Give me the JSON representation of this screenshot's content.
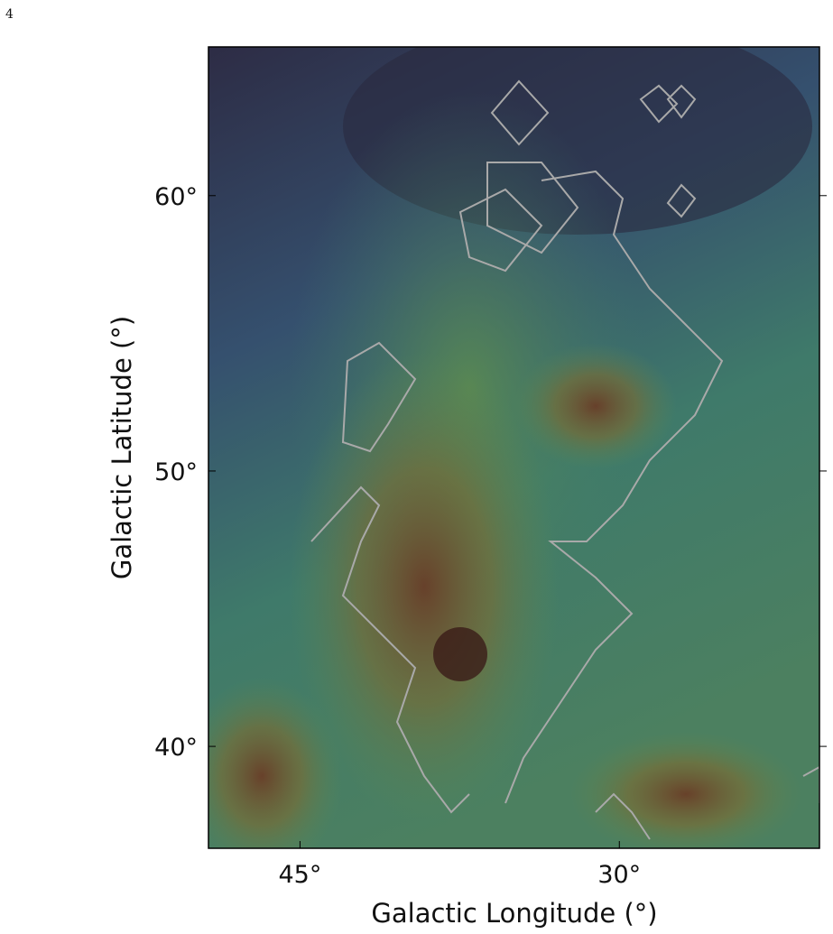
{
  "page_number": "4",
  "chart_data": {
    "type": "map",
    "x_label": "Galactic Longitude (°)",
    "y_label": "Galactic Latitude (°)",
    "xlim": [
      49.3,
      20.6
    ],
    "ylim": [
      36.3,
      65.4
    ],
    "xticks": [
      {
        "value": 45,
        "label": "45°"
      },
      {
        "value": 30,
        "label": "30°"
      }
    ],
    "yticks": [
      {
        "value": 60,
        "label": "60°"
      },
      {
        "value": 50,
        "label": "50°"
      },
      {
        "value": 40,
        "label": "40°"
      }
    ]
  }
}
